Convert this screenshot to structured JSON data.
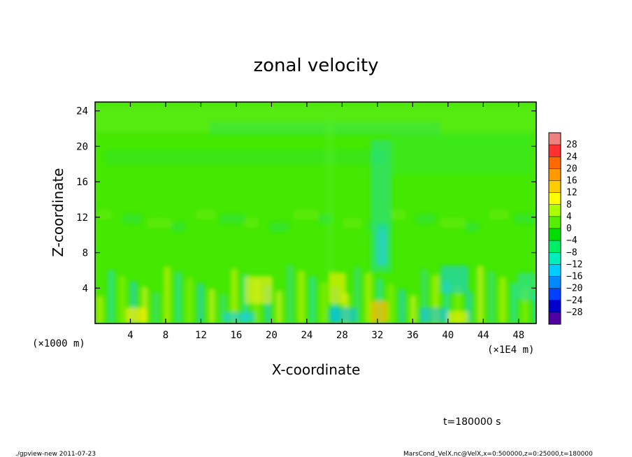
{
  "chart_data": {
    "type": "heatmap",
    "title": "zonal velocity",
    "xlabel": "X-coordinate",
    "ylabel": "Z-coordinate",
    "x_unit_left": "(×1000 m)",
    "x_unit_right": "(×1E4 m)",
    "x_ticks": [
      "4",
      "8",
      "12",
      "16",
      "20",
      "24",
      "28",
      "32",
      "36",
      "40",
      "44",
      "48"
    ],
    "x_tick_values": [
      4,
      8,
      12,
      16,
      20,
      24,
      28,
      32,
      36,
      40,
      44,
      48
    ],
    "xlim": [
      0,
      50
    ],
    "y_ticks": [
      "4",
      "8",
      "12",
      "16",
      "20",
      "24"
    ],
    "y_tick_values": [
      4,
      8,
      12,
      16,
      20,
      24
    ],
    "ylim": [
      0,
      25
    ],
    "colorbar_labels": [
      "28",
      "24",
      "20",
      "16",
      "12",
      "8",
      "4",
      "0",
      "−4",
      "−8",
      "−12",
      "−16",
      "−20",
      "−24",
      "−28"
    ],
    "colorbar_colors": [
      "#f08080",
      "#ff3030",
      "#ff6a00",
      "#ff9a00",
      "#ffcc00",
      "#ffff00",
      "#aaff00",
      "#55ee00",
      "#00dd00",
      "#00ee66",
      "#00eebb",
      "#00ccff",
      "#0088ff",
      "#0040ff",
      "#0000cc",
      "#5000a0"
    ],
    "grid": false,
    "time_label": "t=180000 s"
  },
  "footer": {
    "program": "./gpview-new   2011-07-23",
    "source": "MarsCond_VelX.nc@VelX,x=0:500000,z=0:25000,t=180000"
  }
}
